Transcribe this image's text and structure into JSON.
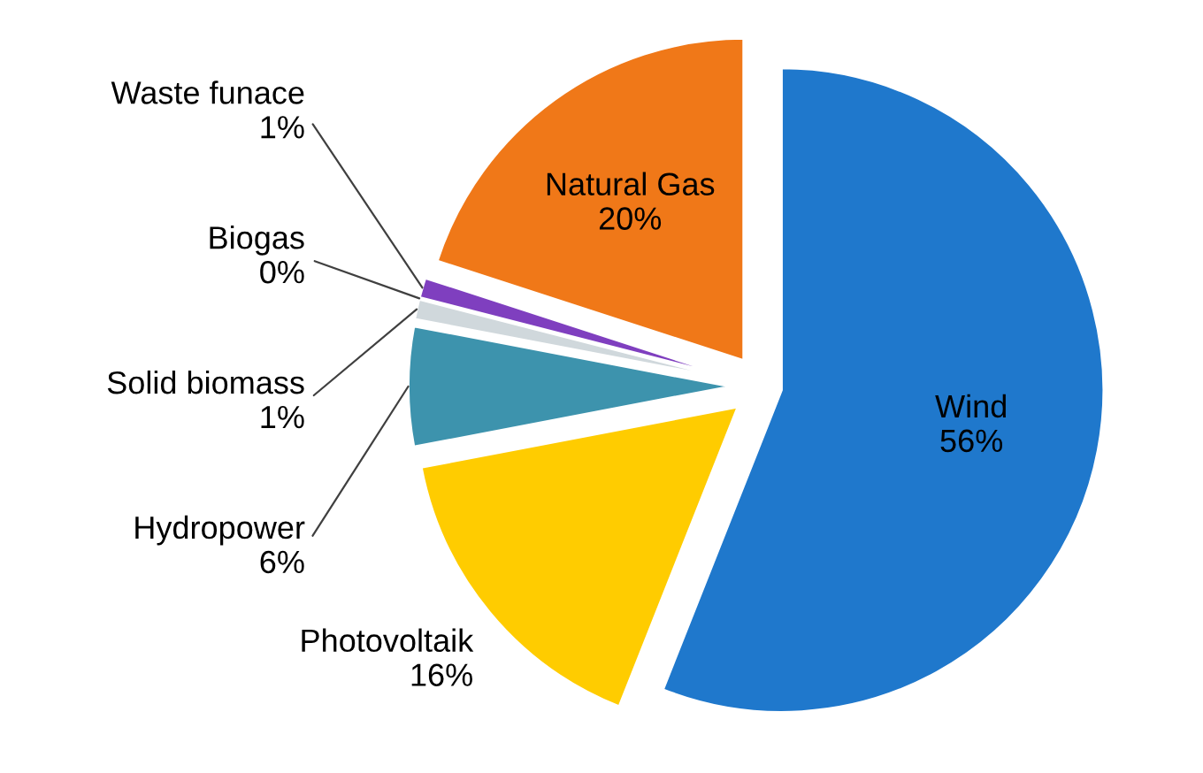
{
  "chart_data": {
    "type": "pie",
    "categories": [
      "Wind",
      "Photovoltaik",
      "Hydropower",
      "Solid biomass",
      "Biogas",
      "Waste funace",
      "Natural Gas"
    ],
    "values": [
      56,
      16,
      6,
      1,
      0,
      1,
      20
    ],
    "value_labels": [
      "56%",
      "16%",
      "6%",
      "1%",
      "0%",
      "1%",
      "20%"
    ],
    "colors": [
      "#1f78cc",
      "#ffcc00",
      "#3d93ad",
      "#d0d8dc",
      "#2e9a3a",
      "#7f3fbf",
      "#f07818"
    ],
    "legend": false
  }
}
